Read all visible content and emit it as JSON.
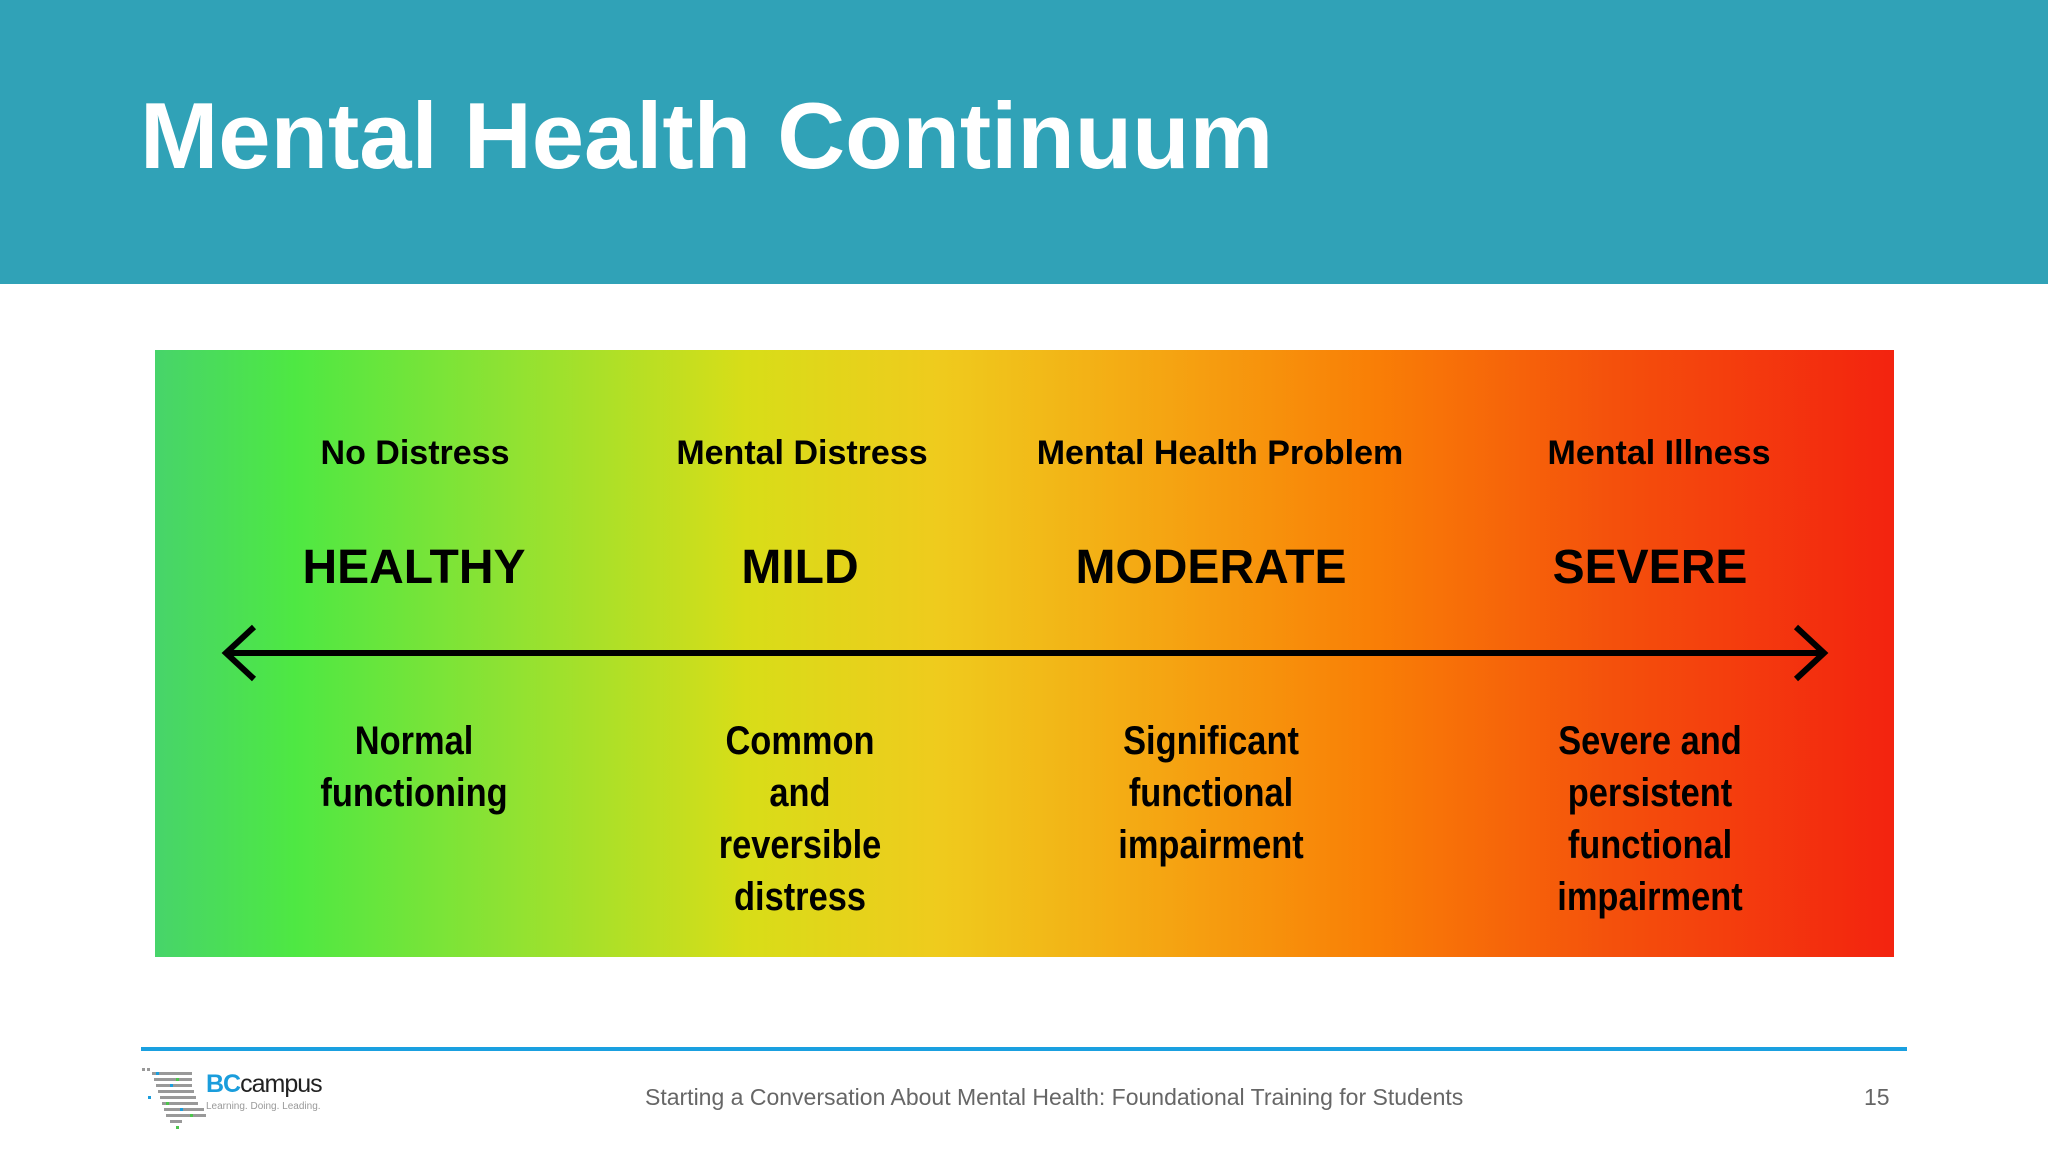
{
  "slide": {
    "title": "Mental Health Continuum",
    "header_color": "#30a2b7"
  },
  "continuum": {
    "columns": [
      {
        "label": "No Distress",
        "severity": "HEALTHY",
        "description": [
          "Normal",
          "functioning"
        ]
      },
      {
        "label": "Mental Distress",
        "severity": "MILD",
        "description": [
          "Common",
          "and",
          "reversible",
          "distress"
        ]
      },
      {
        "label": "Mental Health Problem",
        "severity": "MODERATE",
        "description": [
          "Significant",
          "functional",
          "impairment"
        ]
      },
      {
        "label": "Mental Illness",
        "severity": "SEVERE",
        "description": [
          "Severe and",
          "persistent",
          "functional",
          "impairment"
        ]
      }
    ],
    "gradient_colors": [
      "#47d46a",
      "#4ee843",
      "#d8dd18",
      "#f5a512",
      "#f97f06",
      "#f3230f"
    ],
    "arrow": "double-headed-arrow"
  },
  "footer": {
    "logo_brand_1": "BC",
    "logo_brand_2": "campus",
    "logo_tagline": "Learning. Doing. Leading.",
    "text": "Starting a Conversation About Mental Health: Foundational Training for Students",
    "page_number": "15",
    "rule_color": "#1aa0e0"
  }
}
